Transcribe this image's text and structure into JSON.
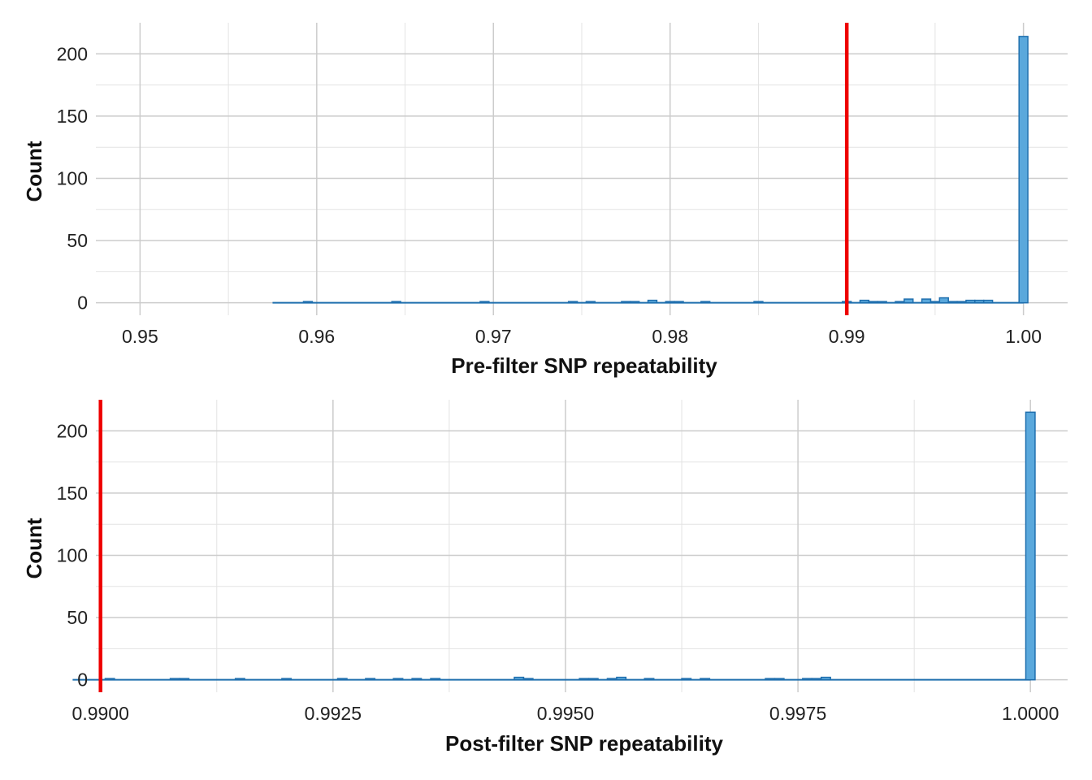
{
  "chart_data": [
    {
      "type": "histogram",
      "title": "",
      "xlabel": "Pre-filter SNP repeatability",
      "ylabel": "Count",
      "xlim": [
        0.9475,
        1.0025
      ],
      "ylim": [
        -10,
        225
      ],
      "x_ticks": [
        0.95,
        0.96,
        0.97,
        0.98,
        0.99,
        1.0
      ],
      "x_tick_labels": [
        "0.95",
        "0.96",
        "0.97",
        "0.98",
        "0.99",
        "1.00"
      ],
      "y_ticks": [
        0,
        50,
        100,
        150,
        200
      ],
      "y_tick_labels": [
        "0",
        "50",
        "100",
        "150",
        "200"
      ],
      "grid": true,
      "bin_width": 0.0005,
      "reference_line": {
        "x": 0.99,
        "color": "#ee0000"
      },
      "bar_color": "#5aa8dc",
      "bar_edge_color": "#1f6fae",
      "bins": [
        {
          "x": 0.9595,
          "count": 1
        },
        {
          "x": 0.9645,
          "count": 1
        },
        {
          "x": 0.9695,
          "count": 1
        },
        {
          "x": 0.9745,
          "count": 1
        },
        {
          "x": 0.9755,
          "count": 1
        },
        {
          "x": 0.9775,
          "count": 1
        },
        {
          "x": 0.978,
          "count": 1
        },
        {
          "x": 0.979,
          "count": 2
        },
        {
          "x": 0.98,
          "count": 1
        },
        {
          "x": 0.9805,
          "count": 1
        },
        {
          "x": 0.982,
          "count": 1
        },
        {
          "x": 0.985,
          "count": 1
        },
        {
          "x": 0.99,
          "count": 1
        },
        {
          "x": 0.991,
          "count": 2
        },
        {
          "x": 0.9915,
          "count": 1
        },
        {
          "x": 0.992,
          "count": 1
        },
        {
          "x": 0.993,
          "count": 1
        },
        {
          "x": 0.9935,
          "count": 3
        },
        {
          "x": 0.9945,
          "count": 3
        },
        {
          "x": 0.995,
          "count": 1
        },
        {
          "x": 0.9955,
          "count": 4
        },
        {
          "x": 0.996,
          "count": 1
        },
        {
          "x": 0.9965,
          "count": 1
        },
        {
          "x": 0.997,
          "count": 2
        },
        {
          "x": 0.9975,
          "count": 2
        },
        {
          "x": 0.998,
          "count": 2
        },
        {
          "x": 1.0,
          "count": 214
        }
      ]
    },
    {
      "type": "histogram",
      "title": "",
      "xlabel": "Post-filter SNP repeatability",
      "ylabel": "Count",
      "xlim": [
        0.98995,
        1.0004
      ],
      "ylim": [
        -10,
        225
      ],
      "x_ticks": [
        0.99,
        0.9925,
        0.995,
        0.9975,
        1.0
      ],
      "x_tick_labels": [
        "0.9900",
        "0.9925",
        "0.9950",
        "0.9975",
        "1.0000"
      ],
      "y_ticks": [
        0,
        50,
        100,
        150,
        200
      ],
      "y_tick_labels": [
        "0",
        "50",
        "100",
        "150",
        "200"
      ],
      "grid": true,
      "bin_width": 0.0001,
      "reference_line": {
        "x": 0.99,
        "color": "#ee0000"
      },
      "bar_color": "#5aa8dc",
      "bar_edge_color": "#1f6fae",
      "bins": [
        {
          "x": 0.9901,
          "count": 1
        },
        {
          "x": 0.9908,
          "count": 1
        },
        {
          "x": 0.9909,
          "count": 1
        },
        {
          "x": 0.9915,
          "count": 1
        },
        {
          "x": 0.992,
          "count": 1
        },
        {
          "x": 0.9926,
          "count": 1
        },
        {
          "x": 0.9929,
          "count": 1
        },
        {
          "x": 0.9932,
          "count": 1
        },
        {
          "x": 0.9934,
          "count": 1
        },
        {
          "x": 0.9936,
          "count": 1
        },
        {
          "x": 0.9945,
          "count": 2
        },
        {
          "x": 0.9946,
          "count": 1
        },
        {
          "x": 0.9952,
          "count": 1
        },
        {
          "x": 0.9953,
          "count": 1
        },
        {
          "x": 0.9955,
          "count": 1
        },
        {
          "x": 0.9956,
          "count": 2
        },
        {
          "x": 0.9959,
          "count": 1
        },
        {
          "x": 0.9963,
          "count": 1
        },
        {
          "x": 0.9965,
          "count": 1
        },
        {
          "x": 0.9972,
          "count": 1
        },
        {
          "x": 0.9973,
          "count": 1
        },
        {
          "x": 0.9976,
          "count": 1
        },
        {
          "x": 0.9977,
          "count": 1
        },
        {
          "x": 0.9978,
          "count": 2
        },
        {
          "x": 1.0,
          "count": 215
        }
      ]
    }
  ]
}
